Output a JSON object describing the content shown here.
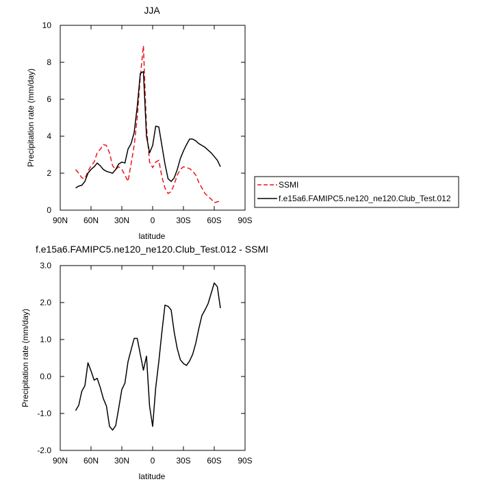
{
  "chart_data": [
    {
      "type": "line",
      "title": "JJA",
      "xlabel": "latitude",
      "ylabel": "Precipitation rate (mm/day)",
      "xlim": [
        90,
        -90
      ],
      "ylim": [
        0,
        10
      ],
      "x_ticks": [
        90,
        60,
        30,
        0,
        -30,
        -60,
        -90
      ],
      "x_tick_labels": [
        "90N",
        "60N",
        "30N",
        "0",
        "30S",
        "60S",
        "90S"
      ],
      "y_ticks": [
        0,
        2,
        4,
        6,
        8,
        10
      ],
      "y_tick_labels": [
        "0",
        "2",
        "4",
        "6",
        "8",
        "10"
      ],
      "legend": [
        "SSMI",
        "f.e15a6.FAMIPC5.ne120_ne120.Club_Test.012"
      ],
      "series": [
        {
          "name": "SSMI",
          "color": "#e8141b",
          "dash": "dashed",
          "x": [
            75,
            72,
            69,
            66,
            63,
            60,
            57,
            54,
            51,
            48,
            45,
            42,
            39,
            36,
            33,
            30,
            27,
            24,
            21,
            18,
            15,
            12,
            9,
            6,
            3,
            0,
            -3,
            -6,
            -9,
            -12,
            -15,
            -18,
            -21,
            -24,
            -27,
            -30,
            -33,
            -36,
            -39,
            -42,
            -45,
            -48,
            -51,
            -54,
            -57,
            -60,
            -63,
            -66
          ],
          "values": [
            2.2,
            2.0,
            1.75,
            1.7,
            2.1,
            2.4,
            2.6,
            3.1,
            3.3,
            3.55,
            3.5,
            3.1,
            2.4,
            2.2,
            2.35,
            2.2,
            1.9,
            1.55,
            2.5,
            3.5,
            5.0,
            7.2,
            8.9,
            4.5,
            2.6,
            2.3,
            2.6,
            2.7,
            1.8,
            1.2,
            0.9,
            1.0,
            1.4,
            1.9,
            2.2,
            2.35,
            2.3,
            2.25,
            2.1,
            1.9,
            1.5,
            1.2,
            0.9,
            0.75,
            0.6,
            0.4,
            0.45,
            0.5
          ]
        },
        {
          "name": "f.e15a6.FAMIPC5.ne120_ne120.Club_Test.012",
          "color": "#000000",
          "dash": "solid",
          "x": [
            75,
            72,
            69,
            66,
            63,
            60,
            57,
            54,
            51,
            48,
            45,
            42,
            39,
            36,
            33,
            30,
            27,
            24,
            21,
            18,
            15,
            12,
            9,
            6,
            3,
            0,
            -3,
            -6,
            -9,
            -12,
            -15,
            -18,
            -21,
            -24,
            -27,
            -30,
            -33,
            -36,
            -39,
            -42,
            -45,
            -48,
            -51,
            -54,
            -57,
            -60,
            -63,
            -66
          ],
          "values": [
            1.2,
            1.3,
            1.35,
            1.55,
            2.0,
            2.2,
            2.35,
            2.55,
            2.4,
            2.2,
            2.1,
            2.05,
            2.0,
            2.2,
            2.5,
            2.6,
            2.55,
            3.3,
            3.6,
            4.2,
            5.6,
            7.4,
            7.5,
            4.0,
            3.1,
            3.5,
            4.55,
            4.5,
            3.5,
            2.5,
            1.7,
            1.55,
            1.75,
            2.2,
            2.8,
            3.2,
            3.55,
            3.85,
            3.85,
            3.75,
            3.6,
            3.5,
            3.4,
            3.25,
            3.1,
            2.9,
            2.7,
            2.35
          ]
        }
      ]
    },
    {
      "type": "line",
      "title": "f.e15a6.FAMIPC5.ne120_ne120.Club_Test.012 - SSMI",
      "xlabel": "latitude",
      "ylabel": "Precipitation rate (mm/day)",
      "xlim": [
        90,
        -90
      ],
      "ylim": [
        -2,
        3
      ],
      "x_ticks": [
        90,
        60,
        30,
        0,
        -30,
        -60,
        -90
      ],
      "x_tick_labels": [
        "90N",
        "60N",
        "30N",
        "0",
        "30S",
        "60S",
        "90S"
      ],
      "y_ticks": [
        -2,
        -1,
        0,
        1,
        2,
        3
      ],
      "y_tick_labels": [
        "-2.0",
        "-1.0",
        "0.0",
        "1.0",
        "2.0",
        "3.0"
      ],
      "series": [
        {
          "name": "f.e15a6.FAMIPC5.ne120_ne120.Club_Test.012 - SSMI",
          "color": "#000000",
          "dash": "solid",
          "x": [
            75,
            72,
            69,
            66,
            63,
            60,
            57,
            54,
            51,
            48,
            45,
            42,
            39,
            36,
            33,
            30,
            27,
            24,
            21,
            18,
            15,
            12,
            9,
            6,
            3,
            0,
            -3,
            -6,
            -9,
            -12,
            -15,
            -18,
            -21,
            -24,
            -27,
            -30,
            -33,
            -36,
            -39,
            -42,
            -45,
            -48,
            -51,
            -54,
            -57,
            -60,
            -63,
            -66
          ],
          "values": [
            -0.92,
            -0.78,
            -0.4,
            -0.25,
            0.37,
            0.15,
            -0.1,
            -0.05,
            -0.3,
            -0.6,
            -0.8,
            -1.35,
            -1.45,
            -1.33,
            -0.85,
            -0.35,
            -0.18,
            0.4,
            0.72,
            1.03,
            1.03,
            0.6,
            0.17,
            0.55,
            -0.8,
            -1.35,
            -0.3,
            0.4,
            1.2,
            1.93,
            1.9,
            1.8,
            1.2,
            0.75,
            0.45,
            0.35,
            0.3,
            0.42,
            0.6,
            0.9,
            1.3,
            1.65,
            1.8,
            1.97,
            2.25,
            2.53,
            2.43,
            1.85
          ]
        }
      ]
    }
  ]
}
